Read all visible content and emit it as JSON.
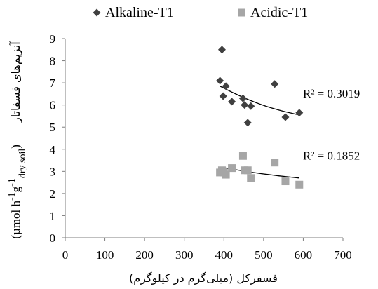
{
  "chart_data": {
    "type": "scatter",
    "xlim": [
      0,
      700
    ],
    "ylim": [
      0,
      9
    ],
    "xticks": [
      0,
      100,
      200,
      300,
      400,
      500,
      600,
      700
    ],
    "yticks": [
      0,
      1,
      2,
      3,
      4,
      5,
      6,
      7,
      8,
      9
    ],
    "xlabel": "فسفرکل (میلی‌گرم در کیلوگرم)",
    "ylabel_persian": "آنزیم‌های فسفاتاز",
    "ylabel_unit_main": "(µmol h",
    "ylabel_unit_sup1": "-1",
    "ylabel_unit_g": "g",
    "ylabel_unit_sup2": "-1",
    "ylabel_unit_sub": "dry soil",
    "ylabel_unit_close": ")",
    "legend": {
      "position": "top"
    },
    "series": [
      {
        "name": "Alkaline-T1",
        "marker": "diamond",
        "color": "#404040",
        "x": [
          390,
          395,
          398,
          405,
          420,
          448,
          452,
          460,
          468,
          528,
          555,
          590
        ],
        "y": [
          7.1,
          8.5,
          6.4,
          6.85,
          6.15,
          6.3,
          6.0,
          5.2,
          5.95,
          6.95,
          5.45,
          5.65
        ],
        "trend": {
          "x": [
            390,
            590
          ],
          "y": [
            6.85,
            5.55
          ]
        },
        "r2_label": "R² = 0.3019"
      },
      {
        "name": "Acidic-T1",
        "marker": "square",
        "color": "#a6a6a6",
        "x": [
          390,
          395,
          400,
          405,
          420,
          448,
          452,
          460,
          468,
          528,
          555,
          590
        ],
        "y": [
          2.95,
          3.05,
          2.95,
          2.85,
          3.15,
          3.7,
          3.05,
          3.05,
          2.7,
          3.4,
          2.55,
          2.4
        ],
        "trend": {
          "x": [
            390,
            590
          ],
          "y": [
            3.2,
            2.7
          ]
        },
        "r2_label": "R² = 0.1852"
      }
    ]
  }
}
